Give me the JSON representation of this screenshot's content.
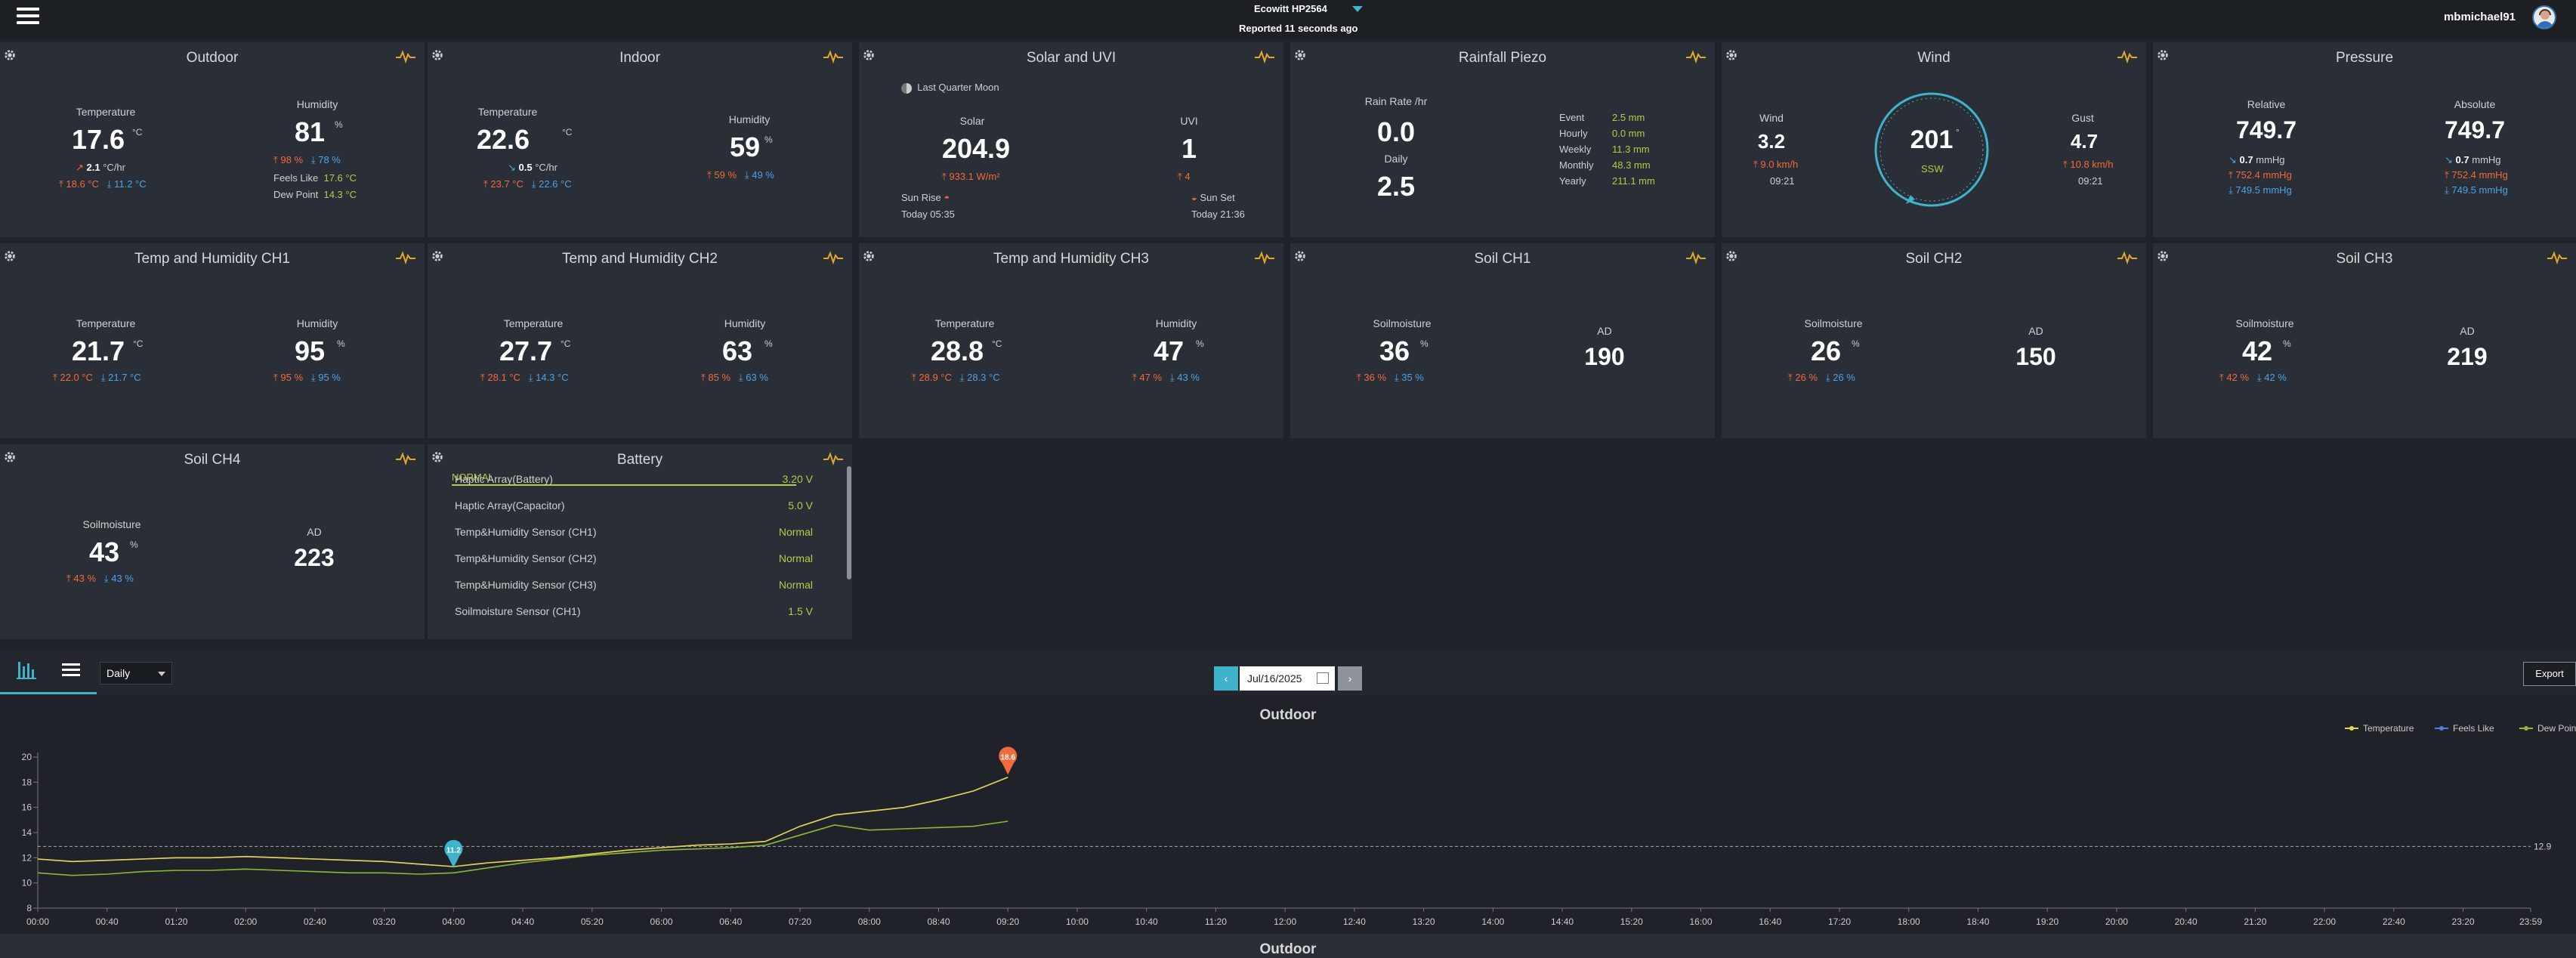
{
  "header": {
    "station": "Ecowitt HP2564",
    "reported": "Reported 11 seconds ago",
    "username": "mbmichael91"
  },
  "outdoor": {
    "title": "Outdoor",
    "temp_label": "Temperature",
    "temp": "17.6",
    "temp_unit": "°C",
    "temp_rate": "2.1",
    "temp_rate_unit": "°C/hr",
    "temp_hi": "18.6 °C",
    "temp_lo": "11.2 °C",
    "hum_label": "Humidity",
    "hum": "81",
    "hum_unit": "%",
    "hum_hi": "98 %",
    "hum_lo": "78 %",
    "feels_label": "Feels Like",
    "feels": "17.6 °C",
    "dew_label": "Dew Point",
    "dew": "14.3 °C"
  },
  "indoor": {
    "title": "Indoor",
    "temp_label": "Temperature",
    "temp": "22.6",
    "temp_unit": "°C",
    "temp_rate": "0.5",
    "temp_rate_unit": "°C/hr",
    "temp_hi": "23.7 °C",
    "temp_lo": "22.6 °C",
    "hum_label": "Humidity",
    "hum": "59",
    "hum_unit": "%",
    "hum_hi": "59 %",
    "hum_lo": "49 %"
  },
  "solar": {
    "title": "Solar and UVI",
    "moon": "Last Quarter Moon",
    "solar_label": "Solar",
    "solar": "204.9",
    "solar_hi": "933.1 W/m²",
    "uvi_label": "UVI",
    "uvi": "1",
    "uvi_hi": "4",
    "sunrise_label": "Sun Rise",
    "sunrise": "Today 05:35",
    "sunset_label": "Sun Set",
    "sunset": "Today 21:36"
  },
  "rain": {
    "title": "Rainfall Piezo",
    "rate_label": "Rain Rate /hr",
    "rate": "0.0",
    "daily_label": "Daily",
    "daily": "2.5",
    "rows": [
      {
        "label": "Event",
        "value": "2.5 mm"
      },
      {
        "label": "Hourly",
        "value": "0.0 mm"
      },
      {
        "label": "Weekly",
        "value": "11.3 mm"
      },
      {
        "label": "Monthly",
        "value": "48.3 mm"
      },
      {
        "label": "Yearly",
        "value": "211.1 mm"
      }
    ]
  },
  "wind": {
    "title": "Wind",
    "wind_label": "Wind",
    "wind": "3.2",
    "wind_max": "9.0 km/h",
    "wind_time": "09:21",
    "dir": "201",
    "dir_unit": "°",
    "dir_name": "SSW",
    "gust_label": "Gust",
    "gust": "4.7",
    "gust_max": "10.8 km/h",
    "gust_time": "09:21"
  },
  "pressure": {
    "title": "Pressure",
    "rel_label": "Relative",
    "rel": "749.7",
    "rel_rate": "0.7",
    "rel_unit": "mmHg",
    "rel_hi": "752.4 mmHg",
    "rel_lo": "749.5 mmHg",
    "abs_label": "Absolute",
    "abs": "749.7",
    "abs_rate": "0.7",
    "abs_unit": "mmHg",
    "abs_hi": "752.4 mmHg",
    "abs_lo": "749.5 mmHg"
  },
  "ch1": {
    "title": "Temp and Humidity CH1",
    "temp_label": "Temperature",
    "temp": "21.7",
    "temp_unit": "°C",
    "temp_hi": "22.0 °C",
    "temp_lo": "21.7 °C",
    "hum_label": "Humidity",
    "hum": "95",
    "hum_unit": "%",
    "hum_hi": "95 %",
    "hum_lo": "95 %"
  },
  "ch2": {
    "title": "Temp and Humidity CH2",
    "temp_label": "Temperature",
    "temp": "27.7",
    "temp_unit": "°C",
    "temp_hi": "28.1 °C",
    "temp_lo": "14.3 °C",
    "hum_label": "Humidity",
    "hum": "63",
    "hum_unit": "%",
    "hum_hi": "85 %",
    "hum_lo": "63 %"
  },
  "ch3": {
    "title": "Temp and Humidity CH3",
    "temp_label": "Temperature",
    "temp": "28.8",
    "temp_unit": "°C",
    "temp_hi": "28.9 °C",
    "temp_lo": "28.3 °C",
    "hum_label": "Humidity",
    "hum": "47",
    "hum_unit": "%",
    "hum_hi": "47 %",
    "hum_lo": "43 %"
  },
  "soil1": {
    "title": "Soil CH1",
    "moist_label": "Soilmoisture",
    "moist": "36",
    "moist_unit": "%",
    "moist_hi": "36 %",
    "moist_lo": "35 %",
    "ad_label": "AD",
    "ad": "190"
  },
  "soil2": {
    "title": "Soil CH2",
    "moist_label": "Soilmoisture",
    "moist": "26",
    "moist_unit": "%",
    "moist_hi": "26 %",
    "moist_lo": "26 %",
    "ad_label": "AD",
    "ad": "150"
  },
  "soil3": {
    "title": "Soil CH3",
    "moist_label": "Soilmoisture",
    "moist": "42",
    "moist_unit": "%",
    "moist_hi": "42 %",
    "moist_lo": "42 %",
    "ad_label": "AD",
    "ad": "219"
  },
  "soil4": {
    "title": "Soil CH4",
    "moist_label": "Soilmoisture",
    "moist": "43",
    "moist_unit": "%",
    "moist_hi": "43 %",
    "moist_lo": "43 %",
    "ad_label": "AD",
    "ad": "223"
  },
  "battery": {
    "title": "Battery",
    "status": "NORMAL",
    "items": [
      {
        "label": "Haptic Array(Battery)",
        "value": "3.20 V"
      },
      {
        "label": "Haptic Array(Capacitor)",
        "value": "5.0 V"
      },
      {
        "label": "Temp&Humidity Sensor (CH1)",
        "value": "Normal"
      },
      {
        "label": "Temp&Humidity Sensor (CH2)",
        "value": "Normal"
      },
      {
        "label": "Temp&Humidity Sensor (CH3)",
        "value": "Normal"
      },
      {
        "label": "Soilmoisture Sensor (CH1)",
        "value": "1.5 V"
      }
    ]
  },
  "toolbar": {
    "period": "Daily",
    "date": "Jul/16/2025",
    "export": "Export"
  },
  "chart_data": {
    "type": "line",
    "title": "Outdoor",
    "x": [
      "00:00",
      "00:20",
      "00:40",
      "01:00",
      "01:20",
      "01:40",
      "02:00",
      "02:20",
      "02:40",
      "03:00",
      "03:20",
      "03:40",
      "04:00",
      "04:20",
      "04:40",
      "05:00",
      "05:20",
      "05:40",
      "06:00",
      "06:20",
      "06:40",
      "07:00",
      "07:20",
      "07:40",
      "08:00",
      "08:20",
      "08:40",
      "09:00",
      "09:20"
    ],
    "xticks": [
      "00:00",
      "00:40",
      "01:20",
      "02:00",
      "02:40",
      "03:20",
      "04:00",
      "04:40",
      "05:20",
      "06:00",
      "06:40",
      "07:20",
      "08:00",
      "08:40",
      "09:20",
      "10:00",
      "10:40",
      "11:20",
      "12:00",
      "12:40",
      "13:20",
      "14:00",
      "14:40",
      "15:20",
      "16:00",
      "16:40",
      "17:20",
      "18:00",
      "18:40",
      "19:20",
      "20:00",
      "20:40",
      "21:20",
      "22:00",
      "22:40",
      "23:20",
      "23:59"
    ],
    "yticks": [
      8,
      10,
      12,
      14,
      16,
      18,
      20
    ],
    "ylim": [
      8,
      20
    ],
    "reference_line": 12.9,
    "series": [
      {
        "name": "Temperature",
        "color": "#e8d34a",
        "values": [
          11.9,
          11.7,
          11.8,
          11.9,
          12.0,
          12.0,
          12.1,
          12.0,
          11.9,
          11.8,
          11.7,
          11.5,
          11.3,
          11.6,
          11.8,
          12.0,
          12.3,
          12.6,
          12.8,
          13.0,
          13.1,
          13.3,
          14.5,
          15.4,
          15.7,
          16.0,
          16.6,
          17.3,
          18.4
        ]
      },
      {
        "name": "Feels Like",
        "color": "#4a7fd8",
        "values": [
          11.9,
          11.7,
          11.8,
          11.9,
          12.0,
          12.0,
          12.1,
          12.0,
          11.9,
          11.8,
          11.7,
          11.5,
          11.3,
          11.6,
          11.8,
          12.0,
          12.3,
          12.6,
          12.8,
          13.0,
          13.1,
          13.3,
          14.5,
          15.4,
          15.7,
          16.0,
          16.6,
          17.3,
          18.4
        ]
      },
      {
        "name": "Dew Point",
        "color": "#8cb83a",
        "values": [
          10.8,
          10.6,
          10.7,
          10.9,
          11.0,
          11.0,
          11.1,
          11.0,
          10.9,
          10.8,
          10.8,
          10.7,
          10.8,
          11.2,
          11.6,
          11.9,
          12.2,
          12.4,
          12.6,
          12.7,
          12.8,
          13.0,
          13.8,
          14.6,
          14.2,
          14.3,
          14.4,
          14.5,
          14.9
        ]
      }
    ],
    "markers": [
      {
        "label": "11.2",
        "x": "04:00",
        "y": 11.2,
        "color": "#3fb3c9"
      },
      {
        "label": "18.6",
        "x": "09:20",
        "y": 18.6,
        "color": "#f26a3a"
      }
    ],
    "reference_label": "12.9",
    "legend": "top-right"
  },
  "bottom": {
    "title": "Outdoor"
  }
}
